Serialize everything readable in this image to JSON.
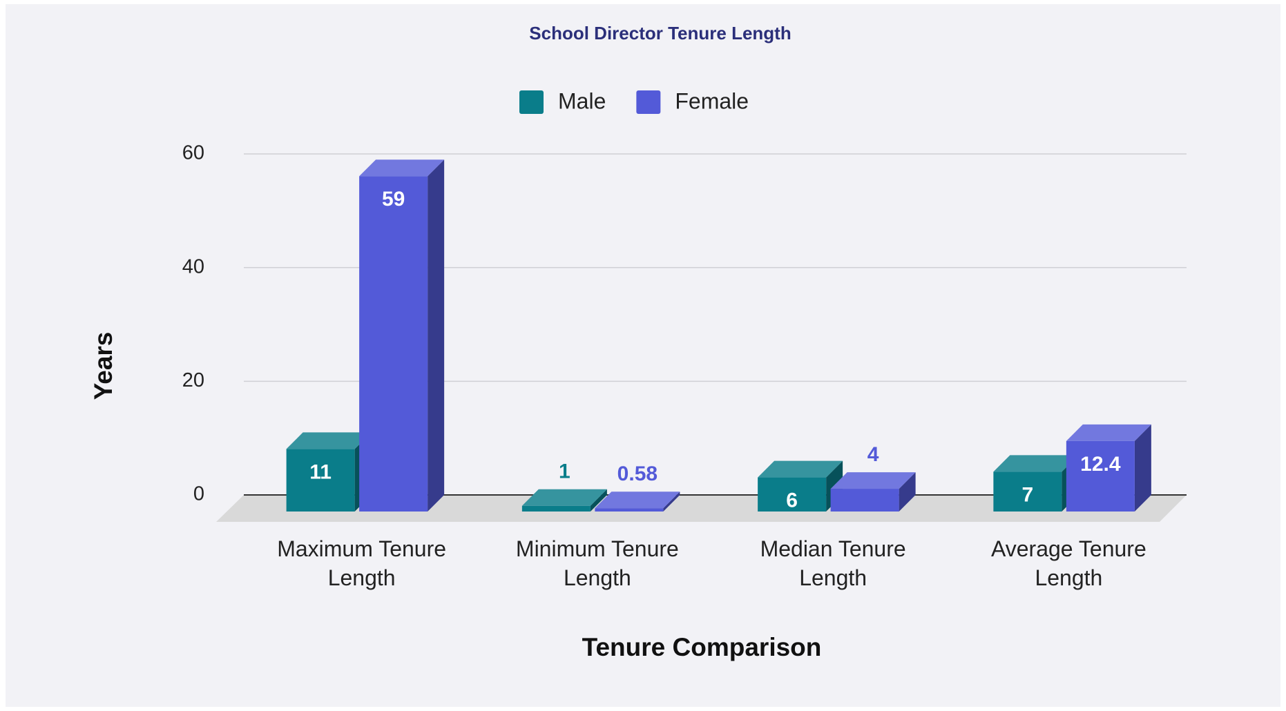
{
  "chart_data": {
    "type": "bar3d",
    "title": "School Director Tenure Length",
    "x_label": "Tenure Comparison",
    "y_label": "Years",
    "categories": [
      "Maximum Tenure Length",
      "Minimum Tenure Length",
      "Median Tenure Length",
      "Average Tenure Length"
    ],
    "series": [
      {
        "name": "Male",
        "color": "#0a7d8a",
        "values": [
          11,
          1,
          6,
          7
        ]
      },
      {
        "name": "Female",
        "color": "#535ad8",
        "values": [
          59,
          0.58,
          4,
          12.4
        ]
      }
    ],
    "ylim": [
      0,
      60
    ],
    "yticks": [
      0,
      20,
      40,
      60
    ],
    "grid": true,
    "legend": "top"
  }
}
